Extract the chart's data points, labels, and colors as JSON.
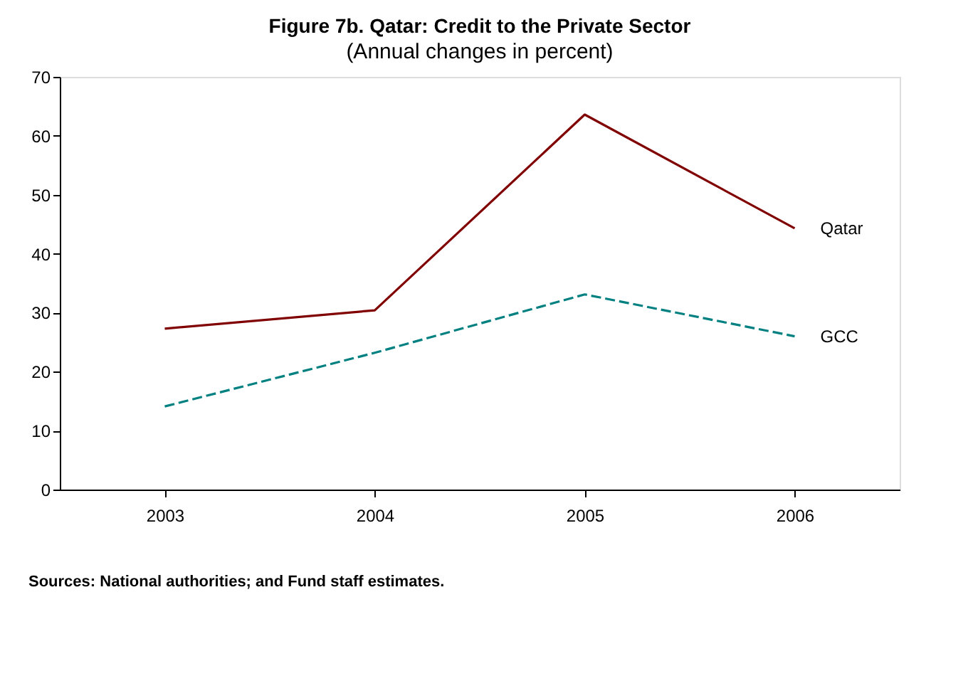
{
  "chart_data": {
    "type": "line",
    "title": "Figure 7b. Qatar: Credit to the Private Sector",
    "subtitle": "(Annual changes in percent)",
    "categories": [
      "2003",
      "2004",
      "2005",
      "2006"
    ],
    "series": [
      {
        "name": "Qatar",
        "color": "#800000",
        "line_style": "solid",
        "values": [
          27.3,
          30.4,
          63.6,
          44.3
        ]
      },
      {
        "name": "GCC",
        "color": "#008080",
        "line_style": "dashed",
        "values": [
          14.1,
          23.2,
          33.1,
          26.0
        ]
      }
    ],
    "ylim": [
      0,
      70
    ],
    "yticks": [
      0,
      10,
      20,
      30,
      40,
      50,
      60,
      70
    ],
    "grid": false,
    "legend": false,
    "marker": "none",
    "annotations": [
      "Sources: National authorities; and Fund staff estimates."
    ]
  }
}
